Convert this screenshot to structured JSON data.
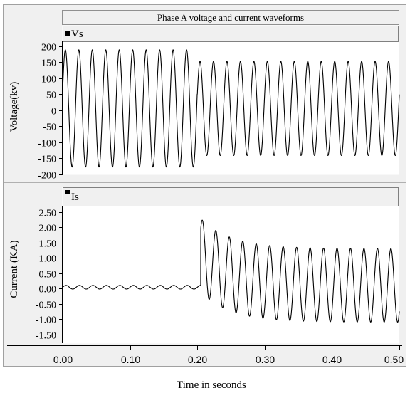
{
  "title": "Phase A voltage and current waveforms",
  "xlabel": "Time in seconds",
  "chart_data": [
    {
      "type": "line",
      "ylabel": "Voltage(kv)",
      "legend": "Vs",
      "ylim": [
        -200,
        200
      ],
      "yticks": [
        200,
        150,
        100,
        50,
        0,
        -50,
        -100,
        -150,
        -200
      ],
      "ytick_labels": [
        "200",
        "150",
        "100",
        "50",
        "0",
        "-50",
        "-100",
        "-150",
        "-200"
      ],
      "xlim": [
        0.0,
        0.5
      ],
      "series": [
        {
          "name": "Vs",
          "frequency_hz": 50,
          "segments": [
            {
              "t_start": 0.0,
              "t_end": 0.2,
              "peak_max": 188,
              "peak_min": -178
            },
            {
              "t_start": 0.2,
              "t_end": 0.5,
              "peak_max": 152,
              "peak_min": -142
            }
          ]
        }
      ]
    },
    {
      "type": "line",
      "ylabel": "Current (KA)",
      "legend": "Is",
      "ylim": [
        -1.75,
        2.5
      ],
      "yticks": [
        2.5,
        2.0,
        1.5,
        1.0,
        0.5,
        0.0,
        -0.5,
        -1.0,
        -1.5
      ],
      "ytick_labels": [
        "2.50",
        "2.00",
        "1.50",
        "1.00",
        "0.50",
        "0.00",
        "-0.50",
        "-1.00",
        "-1.50"
      ],
      "xlim": [
        0.0,
        0.5
      ],
      "series": [
        {
          "name": "Is",
          "frequency_hz": 50,
          "segments": [
            {
              "t_start": 0.0,
              "t_end": 0.2,
              "amplitude": 0.06,
              "offset": 0.04
            },
            {
              "t_start": 0.2,
              "t_end": 0.5,
              "first_peak": 2.28,
              "settled_peak_max": 1.3,
              "settled_peak_min": -1.1,
              "decay_time_constant_s": 0.045
            }
          ]
        }
      ]
    }
  ],
  "x_axis": {
    "ticks": [
      0.0,
      0.1,
      0.2,
      0.3,
      0.4,
      0.5
    ],
    "tick_labels": [
      "0.00",
      "0.10",
      "0.20",
      "0.30",
      "0.40",
      "0.50"
    ]
  }
}
